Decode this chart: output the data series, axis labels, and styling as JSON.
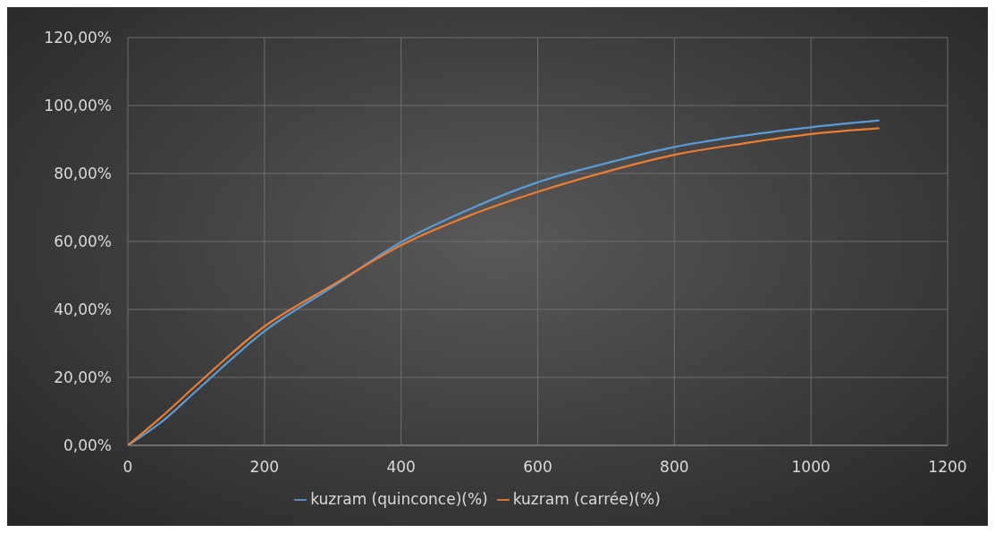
{
  "chart_data": {
    "type": "line",
    "x": [
      0,
      50,
      100,
      200,
      300,
      400,
      500,
      600,
      700,
      800,
      900,
      1000,
      1100
    ],
    "series": [
      {
        "name": "kuzram (quinconce)(%)",
        "color": "#5b9bd5",
        "values": [
          0,
          7,
          16,
          33.6,
          46.7,
          59.8,
          69.5,
          77.4,
          83,
          87.8,
          91.1,
          93.6,
          95.6
        ]
      },
      {
        "name": "kuzram (carrée)(%)",
        "color": "#ed7d31",
        "values": [
          0,
          8.5,
          17.7,
          35,
          47.2,
          58.9,
          67.6,
          74.6,
          80.5,
          85.5,
          88.8,
          91.6,
          93.3
        ]
      }
    ],
    "xlim": [
      0,
      1200
    ],
    "xticks": [
      0,
      200,
      400,
      600,
      800,
      1000,
      1200
    ],
    "ylim": [
      0,
      120
    ],
    "yticks": [
      {
        "value": 0,
        "label": "0,00%"
      },
      {
        "value": 20,
        "label": "20,00%"
      },
      {
        "value": 40,
        "label": "40,00%"
      },
      {
        "value": 60,
        "label": "60,00%"
      },
      {
        "value": 80,
        "label": "80,00%"
      },
      {
        "value": 100,
        "label": "100,00%"
      },
      {
        "value": 120,
        "label": "120,00%"
      }
    ],
    "grid": true,
    "legend": "bottom",
    "marker": "none",
    "line_style": "solid"
  }
}
